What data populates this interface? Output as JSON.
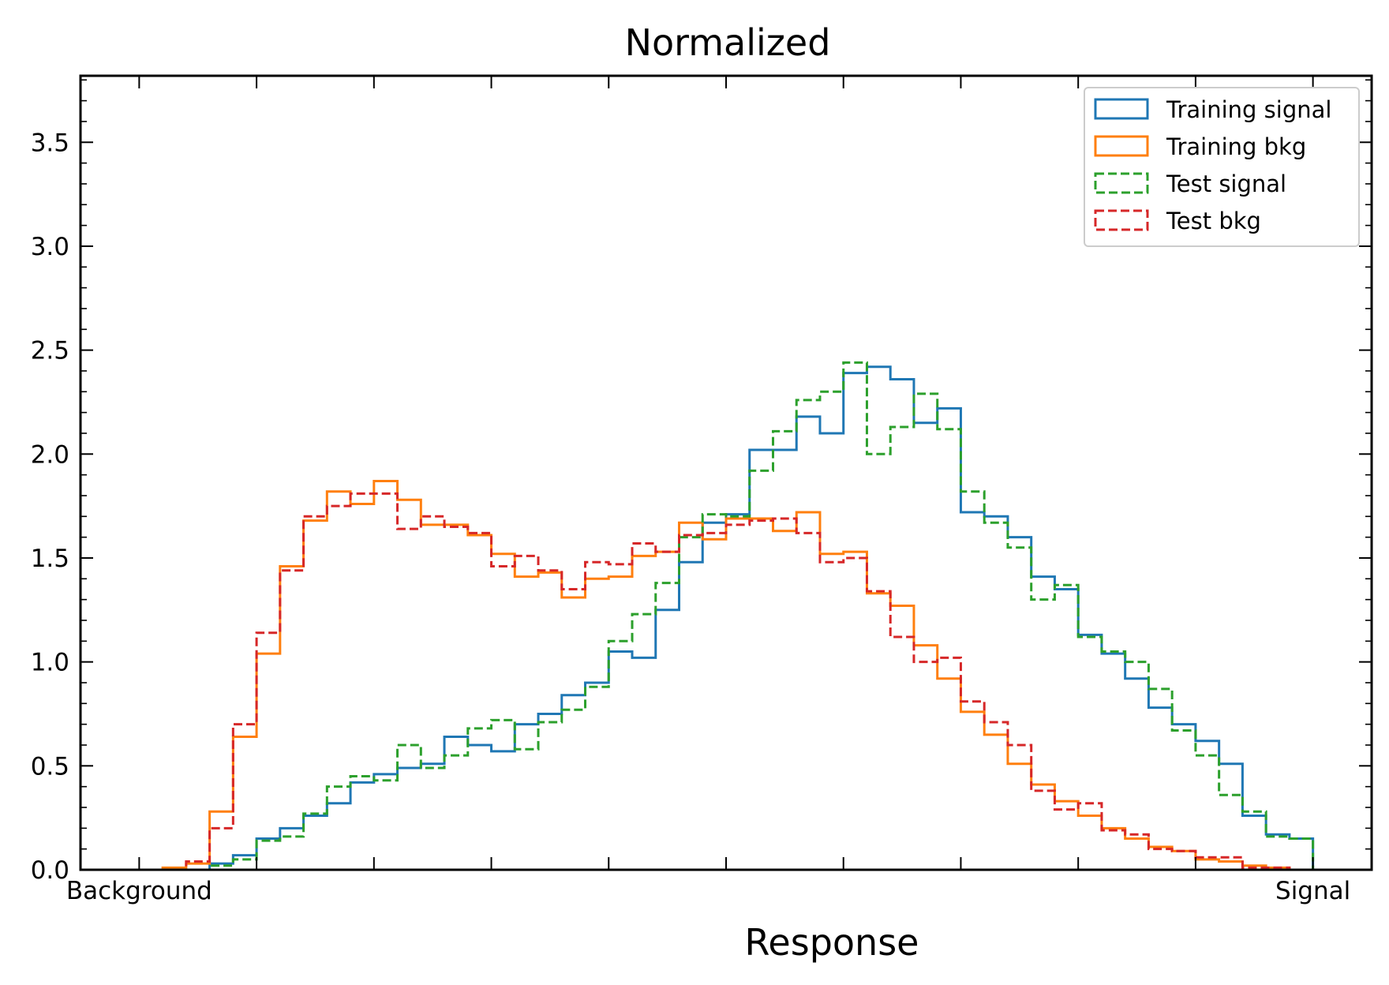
{
  "chart_data": {
    "type": "histogram",
    "title": "Normalized",
    "xlabel": "Response",
    "ylabel": "",
    "xlim": [
      -0.05,
      1.05
    ],
    "ylim": [
      0,
      3.82
    ],
    "bins": {
      "start": 0.0,
      "width": 0.02,
      "count": 50
    },
    "x_tick_labels": [
      {
        "value": 0.0,
        "label": "Background"
      },
      {
        "value": 1.0,
        "label": "Signal"
      }
    ],
    "y_ticks": [
      {
        "value": 0.0,
        "label": "0.0"
      },
      {
        "value": 0.5,
        "label": "0.5"
      },
      {
        "value": 1.0,
        "label": "1.0"
      },
      {
        "value": 1.5,
        "label": "1.5"
      },
      {
        "value": 2.0,
        "label": "2.0"
      },
      {
        "value": 2.5,
        "label": "2.5"
      },
      {
        "value": 3.0,
        "label": "3.0"
      },
      {
        "value": 3.5,
        "label": "3.5"
      }
    ],
    "legend_position": "top-right",
    "series": [
      {
        "name": "Training signal",
        "color": "#1f77b4",
        "style": "solid",
        "values": [
          0,
          0,
          0,
          0.03,
          0.07,
          0.15,
          0.2,
          0.26,
          0.32,
          0.42,
          0.46,
          0.49,
          0.51,
          0.64,
          0.6,
          0.57,
          0.7,
          0.75,
          0.84,
          0.9,
          1.05,
          1.02,
          1.25,
          1.48,
          1.67,
          1.71,
          2.02,
          2.02,
          2.18,
          2.1,
          2.39,
          2.42,
          2.36,
          2.15,
          2.22,
          1.72,
          1.7,
          1.6,
          1.41,
          1.35,
          1.13,
          1.04,
          0.92,
          0.78,
          0.7,
          0.62,
          0.51,
          0.26,
          0.17,
          0.15
        ]
      },
      {
        "name": "Training bkg",
        "color": "#ff7f0e",
        "style": "solid",
        "values": [
          0,
          0.01,
          0.03,
          0.28,
          0.64,
          1.04,
          1.46,
          1.68,
          1.82,
          1.76,
          1.87,
          1.78,
          1.66,
          1.66,
          1.61,
          1.52,
          1.41,
          1.43,
          1.31,
          1.4,
          1.41,
          1.51,
          1.53,
          1.67,
          1.59,
          1.69,
          1.69,
          1.63,
          1.72,
          1.52,
          1.53,
          1.33,
          1.27,
          1.08,
          0.92,
          0.76,
          0.65,
          0.51,
          0.41,
          0.33,
          0.26,
          0.2,
          0.15,
          0.11,
          0.09,
          0.05,
          0.04,
          0.02,
          0.01,
          0
        ]
      },
      {
        "name": "Test signal",
        "color": "#2ca02c",
        "style": "dashed",
        "values": [
          0,
          0,
          0,
          0.02,
          0.05,
          0.14,
          0.16,
          0.27,
          0.4,
          0.45,
          0.43,
          0.6,
          0.49,
          0.55,
          0.68,
          0.72,
          0.58,
          0.71,
          0.77,
          0.88,
          1.1,
          1.23,
          1.38,
          1.6,
          1.71,
          1.7,
          1.92,
          2.11,
          2.26,
          2.3,
          2.44,
          2.0,
          2.13,
          2.29,
          2.12,
          1.82,
          1.67,
          1.55,
          1.3,
          1.37,
          1.12,
          1.05,
          1.0,
          0.87,
          0.67,
          0.55,
          0.36,
          0.28,
          0.16,
          0.15
        ]
      },
      {
        "name": "Test bkg",
        "color": "#d62728",
        "style": "dashed",
        "values": [
          0,
          0,
          0.04,
          0.2,
          0.7,
          1.14,
          1.44,
          1.7,
          1.75,
          1.81,
          1.81,
          1.64,
          1.7,
          1.65,
          1.62,
          1.46,
          1.51,
          1.44,
          1.35,
          1.48,
          1.47,
          1.57,
          1.53,
          1.61,
          1.62,
          1.66,
          1.68,
          1.69,
          1.62,
          1.48,
          1.5,
          1.34,
          1.12,
          1.0,
          1.02,
          0.81,
          0.71,
          0.6,
          0.38,
          0.29,
          0.32,
          0.19,
          0.17,
          0.1,
          0.09,
          0.06,
          0.06,
          0.01,
          0.01,
          0
        ]
      }
    ]
  }
}
